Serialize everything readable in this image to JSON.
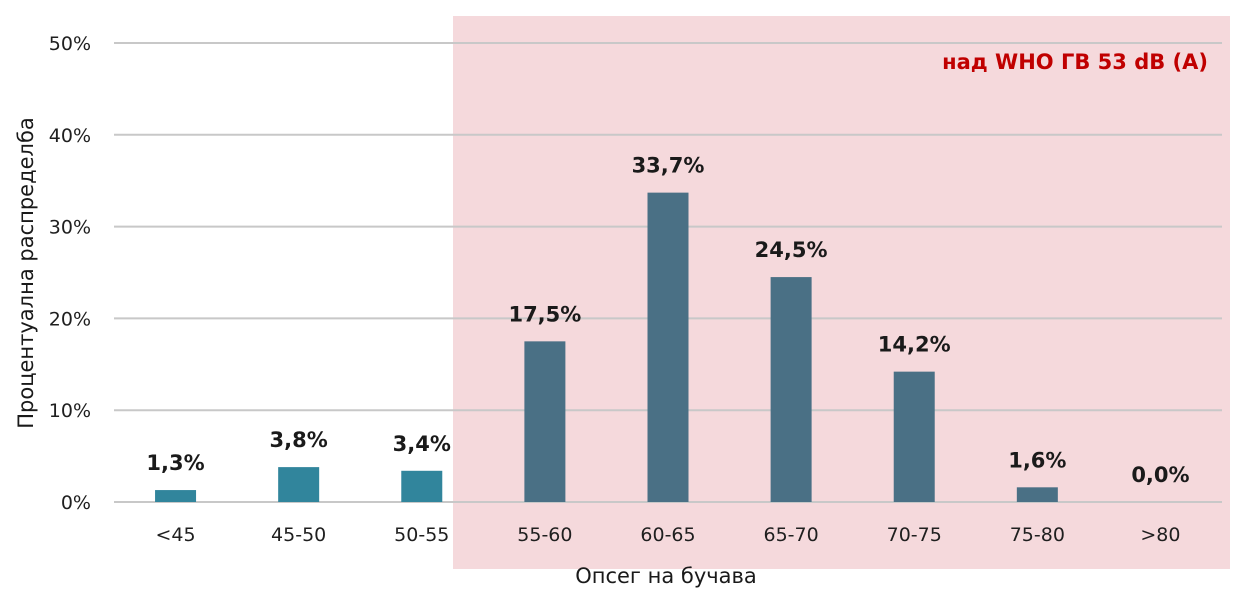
{
  "chart_data": {
    "type": "bar",
    "categories": [
      "<45",
      "45-50",
      "50-55",
      "55-60",
      "60-65",
      "65-70",
      "70-75",
      "75-80",
      ">80"
    ],
    "values": [
      1.3,
      3.8,
      3.4,
      17.5,
      33.7,
      24.5,
      14.2,
      1.6,
      0.0
    ],
    "data_labels": [
      "1,3%",
      "3,8%",
      "3,4%",
      "17,5%",
      "33,7%",
      "24,5%",
      "14,2%",
      "1,6%",
      "0,0%"
    ],
    "xlabel": "Опсег на бучава",
    "ylabel": "Процентуална распределба",
    "ylim": [
      0,
      50
    ],
    "yticks": [
      0,
      10,
      20,
      30,
      40,
      50
    ],
    "ytick_labels": [
      "0%",
      "10%",
      "20%",
      "30%",
      "40%",
      "50%"
    ],
    "grid": true,
    "legend": "none",
    "highlight_zone": {
      "from_category": "55-60",
      "label": "над WHO ГВ 53 dB (A)",
      "label_color": "#c00000",
      "fill_color": "#f5d9dc"
    },
    "colors": {
      "bar_below": "#31859c",
      "bar_above": "#4a7085",
      "grid": "#c8c8c8"
    }
  }
}
